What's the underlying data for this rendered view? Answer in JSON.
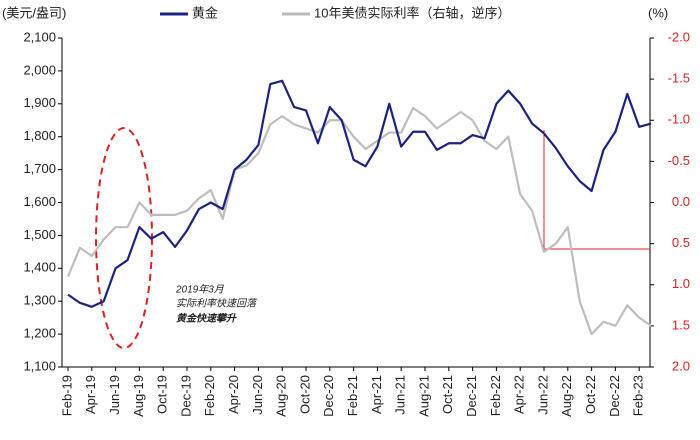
{
  "chart_data": {
    "type": "line",
    "y_label": "(美元/盎司)",
    "y2_label": "(%)",
    "annotations": [
      "2019年3月",
      "实际利率快速回落",
      "黄金快速攀升"
    ],
    "categories": [
      "Feb-19",
      null,
      "Apr-19",
      null,
      "Jun-19",
      null,
      "Aug-19",
      null,
      "Oct-19",
      null,
      "Dec-19",
      null,
      "Feb-20",
      null,
      "Apr-20",
      null,
      "Jun-20",
      null,
      "Aug-20",
      null,
      "Oct-20",
      null,
      "Dec-20",
      null,
      "Feb-21",
      null,
      "Apr-21",
      null,
      "Jun-21",
      null,
      "Aug-21",
      null,
      "Oct-21",
      null,
      "Dec-21",
      null,
      "Feb-22",
      null,
      "Apr-22",
      null,
      "Jun-22",
      null,
      "Aug-22",
      null,
      "Oct-22",
      null,
      "Dec-22",
      null,
      "Feb-23",
      null
    ],
    "series": [
      {
        "name": "黄金",
        "color": "#1c2283",
        "axis": "y",
        "values": [
          1320,
          1295,
          1283,
          1300,
          1400,
          1425,
          1525,
          1490,
          1510,
          1465,
          1515,
          1580,
          1600,
          1580,
          1700,
          1730,
          1775,
          1960,
          1970,
          1890,
          1880,
          1780,
          1890,
          1850,
          1730,
          1710,
          1770,
          1900,
          1770,
          1815,
          1815,
          1760,
          1780,
          1780,
          1805,
          1795,
          1900,
          1940,
          1900,
          1840,
          1810,
          1765,
          1710,
          1665,
          1635,
          1760,
          1815,
          1930,
          1830,
          1840
        ]
      },
      {
        "name": "10年美债实际利率（右轴，逆序）",
        "color": "#bdbdbd",
        "axis": "y2",
        "values": [
          0.9,
          0.55,
          0.65,
          0.45,
          0.3,
          0.3,
          0.0,
          0.15,
          0.15,
          0.15,
          0.1,
          -0.05,
          -0.15,
          0.2,
          -0.4,
          -0.45,
          -0.6,
          -0.95,
          -1.05,
          -0.95,
          -0.9,
          -0.85,
          -1.0,
          -1.0,
          -0.8,
          -0.65,
          -0.75,
          -0.85,
          -0.85,
          -1.15,
          -1.05,
          -0.9,
          -1.0,
          -1.1,
          -1.0,
          -0.75,
          -0.65,
          -0.8,
          -0.1,
          0.1,
          0.6,
          0.5,
          0.3,
          1.2,
          1.6,
          1.45,
          1.5,
          1.25,
          1.4,
          1.5
        ]
      }
    ],
    "ylim": [
      1100,
      2100
    ],
    "yticks": [
      {
        "value": 1100,
        "label": "1,100"
      },
      {
        "value": 1200,
        "label": "1,200"
      },
      {
        "value": 1300,
        "label": "1,300"
      },
      {
        "value": 1400,
        "label": "1,400"
      },
      {
        "value": 1500,
        "label": "1,500"
      },
      {
        "value": 1600,
        "label": "1,600"
      },
      {
        "value": 1700,
        "label": "1,700"
      },
      {
        "value": 1800,
        "label": "1,800"
      },
      {
        "value": 1900,
        "label": "1,900"
      },
      {
        "value": 2000,
        "label": "2,000"
      },
      {
        "value": 2100,
        "label": "2,100"
      }
    ],
    "y2lim": [
      2.0,
      -2.0
    ],
    "y2ticks": [
      {
        "value": -2,
        "label": "-2.0"
      },
      {
        "value": -1.5,
        "label": "-1.5"
      },
      {
        "value": -1,
        "label": "-1.0"
      },
      {
        "value": -0.5,
        "label": "-0.5"
      },
      {
        "value": 0,
        "label": "0.0"
      },
      {
        "value": 0.5,
        "label": "0.5"
      },
      {
        "value": 1,
        "label": "1.0"
      },
      {
        "value": 1.5,
        "label": "1.5"
      },
      {
        "value": 2,
        "label": "2.0"
      }
    ],
    "y2_color": "#e02020",
    "grid": false,
    "legend": "top"
  }
}
